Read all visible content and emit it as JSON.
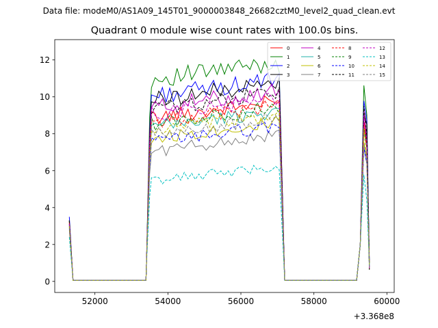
{
  "header_text": "Data file: modeM0/AS1A09_145T01_9000003848_26682cztM0_level2_quad_clean.evt",
  "chart_data": {
    "type": "line",
    "title": "Quadrant 0 module wise count rates with 100.0s bins.",
    "xlabel": "",
    "ylabel": "",
    "x_offset_label": "+3.368e8",
    "xlim": [
      50900,
      60200
    ],
    "ylim": [
      -0.6,
      13.1
    ],
    "xticks": [
      52000,
      54000,
      56000,
      58000,
      60000
    ],
    "xtick_labels": [
      "52000",
      "54000",
      "56000",
      "58000",
      "60000"
    ],
    "yticks": [
      0,
      2,
      4,
      6,
      8,
      10,
      12
    ],
    "ytick_labels": [
      "0",
      "2",
      "4",
      "6",
      "8",
      "10",
      "12"
    ],
    "grid": false,
    "legend": {
      "location": "upper-right",
      "columns": 4
    },
    "series": [
      {
        "name": "0",
        "color": "#ff0000",
        "dash": "solid",
        "level": 9.3,
        "peak": 3.2
      },
      {
        "name": "1",
        "color": "#008000",
        "dash": "solid",
        "level": 11.4,
        "peak": 3.3
      },
      {
        "name": "2",
        "color": "#0000ff",
        "dash": "solid",
        "level": 10.5,
        "peak": 3.5
      },
      {
        "name": "3",
        "color": "#000000",
        "dash": "solid",
        "level": 10.3,
        "peak": 3.3
      },
      {
        "name": "4",
        "color": "#c000c0",
        "dash": "solid",
        "level": 9.9,
        "peak": 3.1
      },
      {
        "name": "5",
        "color": "#20b2aa",
        "dash": "solid",
        "level": 8.8,
        "peak": 3.0
      },
      {
        "name": "6",
        "color": "#bfbf00",
        "dash": "solid",
        "level": 8.2,
        "peak": 2.9
      },
      {
        "name": "7",
        "color": "#808080",
        "dash": "solid",
        "level": 7.5,
        "peak": 2.8
      },
      {
        "name": "8",
        "color": "#ff0000",
        "dash": "dashed",
        "level": 9.1,
        "peak": 3.2
      },
      {
        "name": "9",
        "color": "#008000",
        "dash": "dashed",
        "level": 9.0,
        "peak": 3.1
      },
      {
        "name": "10",
        "color": "#0000ff",
        "dash": "dashed",
        "level": 8.0,
        "peak": 3.0
      },
      {
        "name": "11",
        "color": "#000000",
        "dash": "dashed",
        "level": 9.8,
        "peak": 3.3
      },
      {
        "name": "12",
        "color": "#c000c0",
        "dash": "dashed",
        "level": 9.5,
        "peak": 3.1
      },
      {
        "name": "13",
        "color": "#00c0c0",
        "dash": "dashed",
        "level": 5.9,
        "peak": 2.4
      },
      {
        "name": "14",
        "color": "#bfbf00",
        "dash": "dashed",
        "level": 8.6,
        "peak": 3.0
      },
      {
        "name": "15",
        "color": "#808080",
        "dash": "dashed",
        "level": 8.4,
        "peak": 2.9
      }
    ]
  }
}
